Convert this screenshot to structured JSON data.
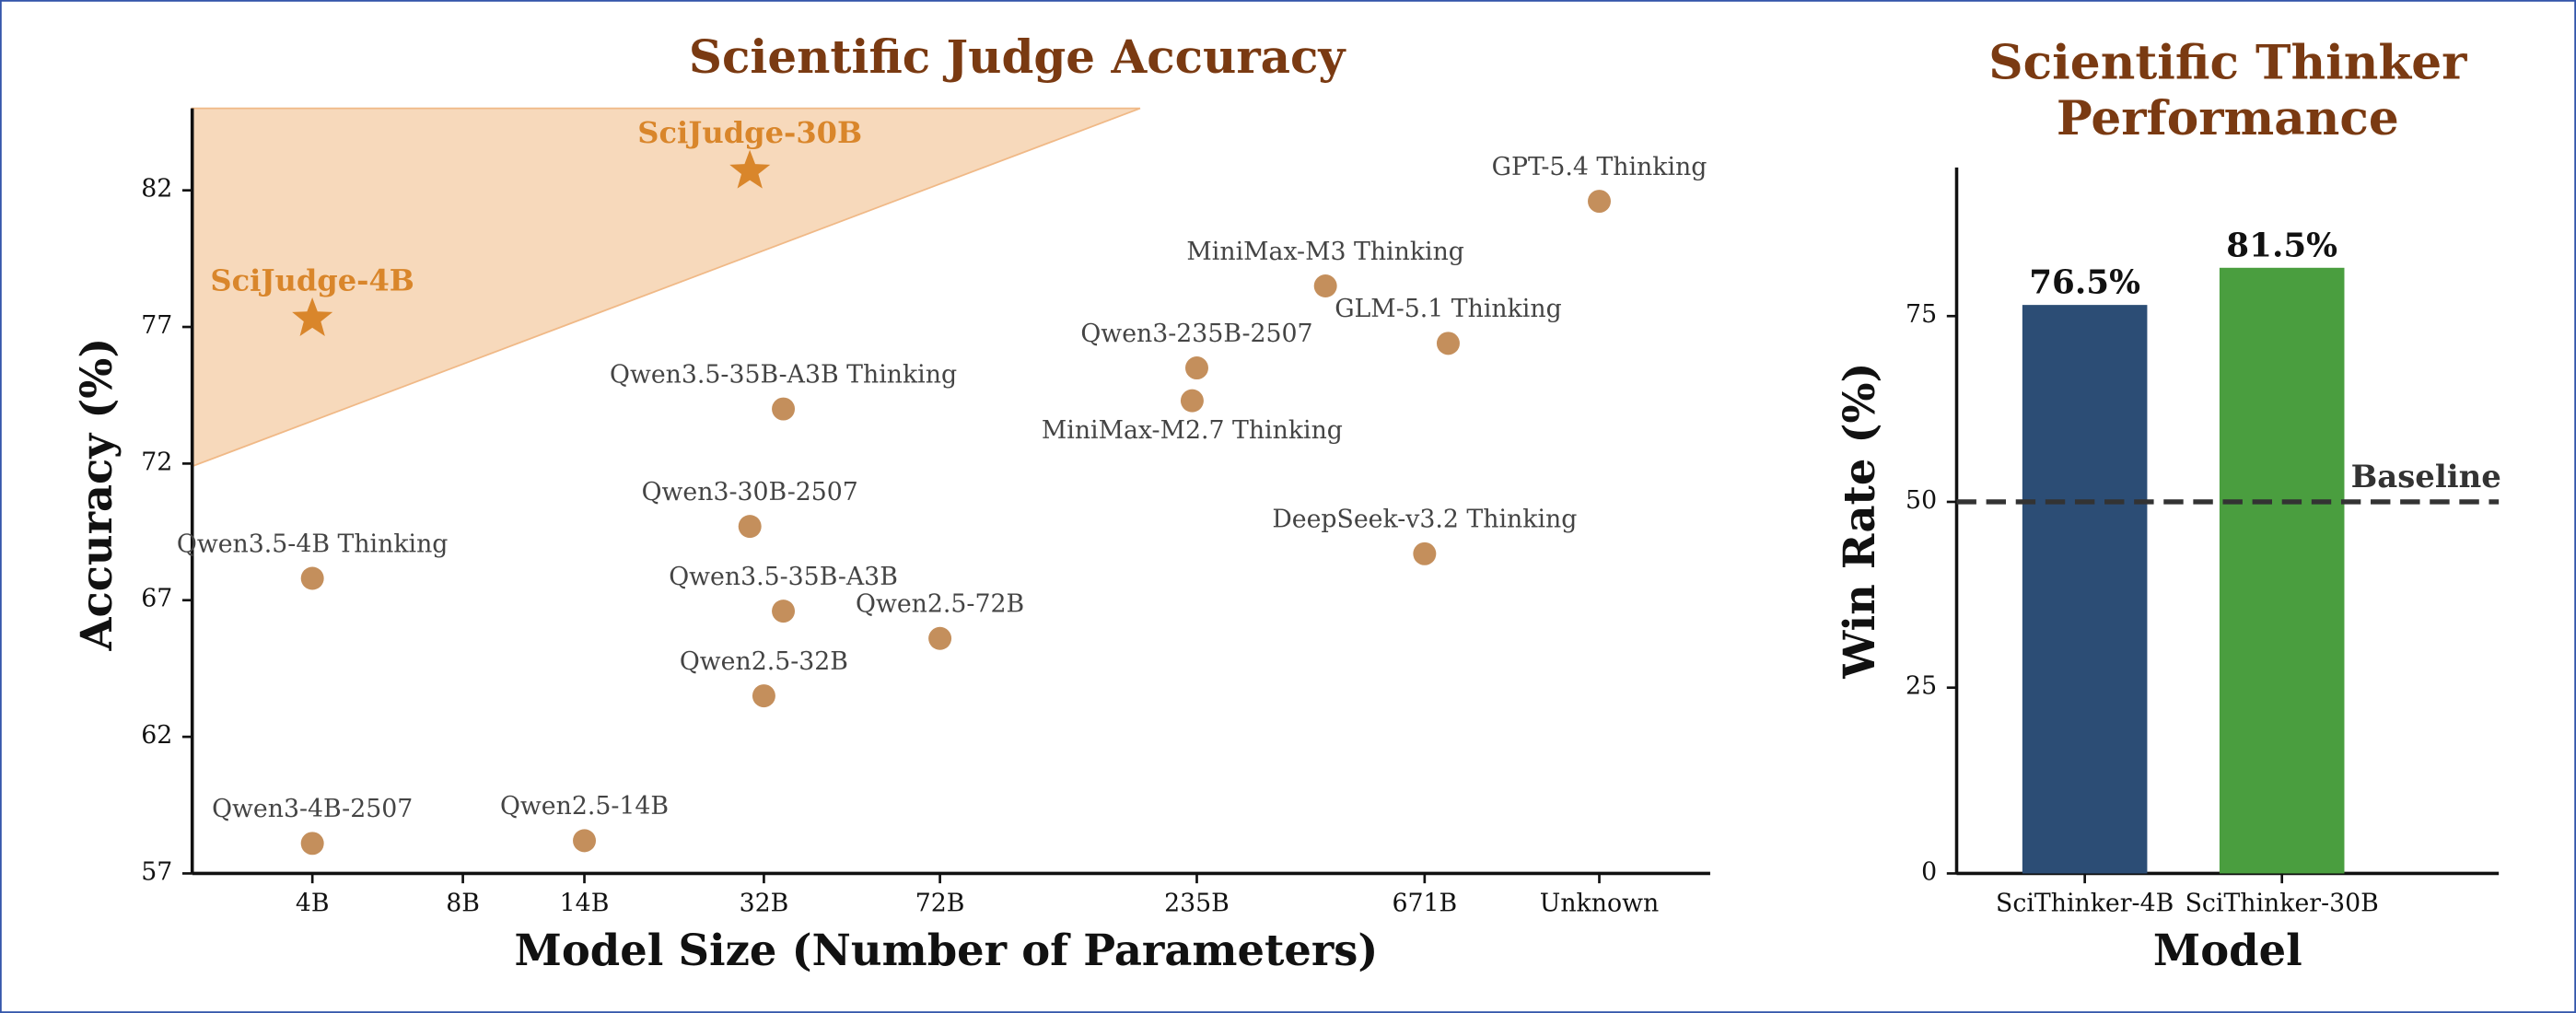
{
  "chart_data": [
    {
      "type": "scatter",
      "title": "Scientific Judge Accuracy",
      "xlabel": "Model Size (Number of Parameters)",
      "ylabel": "Accuracy (%)",
      "xscale": "log",
      "xlim": [
        2.3,
        2500
      ],
      "ylim": [
        57,
        85
      ],
      "xticks": [
        {
          "value": 4,
          "label": "4B"
        },
        {
          "value": 8,
          "label": "8B"
        },
        {
          "value": 14,
          "label": "14B"
        },
        {
          "value": 32,
          "label": "32B"
        },
        {
          "value": 72,
          "label": "72B"
        },
        {
          "value": 235,
          "label": "235B"
        },
        {
          "value": 671,
          "label": "671B"
        },
        {
          "value": 1500,
          "label": "Unknown"
        }
      ],
      "yticks": [
        57,
        62,
        67,
        72,
        77,
        82
      ],
      "region": {
        "color": "#f7d9bb",
        "x": [
          2.3,
          181,
          2.3
        ],
        "y": [
          85,
          85,
          71.9
        ]
      },
      "series": [
        {
          "marker": "star",
          "color": "#d9862b",
          "label_color": "#d9862b",
          "labels": [
            "SciJudge-30B",
            "SciJudge-4B"
          ],
          "x": [
            30,
            4
          ],
          "values": [
            82.7,
            77.3
          ],
          "label_positions": [
            "above",
            "above"
          ]
        },
        {
          "marker": "circle",
          "color": "#c48f5c",
          "label_color": "#444444",
          "labels": [
            "GPT-5.4 Thinking",
            "MiniMax-M3 Thinking",
            "GLM-5.1 Thinking",
            "Qwen3-235B-2507",
            "MiniMax-M2.7 Thinking",
            "Qwen3.5-35B-A3B Thinking",
            "Qwen3-30B-2507",
            "DeepSeek-v3.2 Thinking",
            "Qwen3.5-4B Thinking",
            "Qwen3.5-35B-A3B",
            "Qwen2.5-72B",
            "Qwen2.5-32B",
            "Qwen3-4B-2507",
            "Qwen2.5-14B"
          ],
          "x": [
            1500,
            425,
            748,
            235,
            230,
            35,
            30,
            671,
            4,
            35,
            72,
            32,
            4,
            14
          ],
          "values": [
            81.6,
            78.5,
            76.4,
            75.5,
            74.3,
            74.0,
            69.7,
            68.7,
            67.8,
            66.6,
            65.6,
            63.5,
            58.1,
            58.2
          ],
          "label_positions": [
            "above",
            "above",
            "above",
            "above",
            "below",
            "above",
            "above",
            "above",
            "above",
            "above",
            "above",
            "above",
            "above",
            "above"
          ]
        }
      ]
    },
    {
      "type": "bar",
      "title": "Scientific Thinker Performance",
      "xlabel": "Model",
      "ylabel": "Win Rate (%)",
      "categories": [
        "SciThinker-4B",
        "SciThinker-30B"
      ],
      "values": [
        76.5,
        81.5
      ],
      "value_labels": [
        "76.5%",
        "81.5%"
      ],
      "colors": [
        "#2c4d75",
        "#4a9e3f"
      ],
      "ylim": [
        0,
        95
      ],
      "yticks": [
        0,
        25,
        50,
        75
      ],
      "reference_line": {
        "value": 50,
        "label": "Baseline",
        "color": "#333333"
      }
    }
  ]
}
